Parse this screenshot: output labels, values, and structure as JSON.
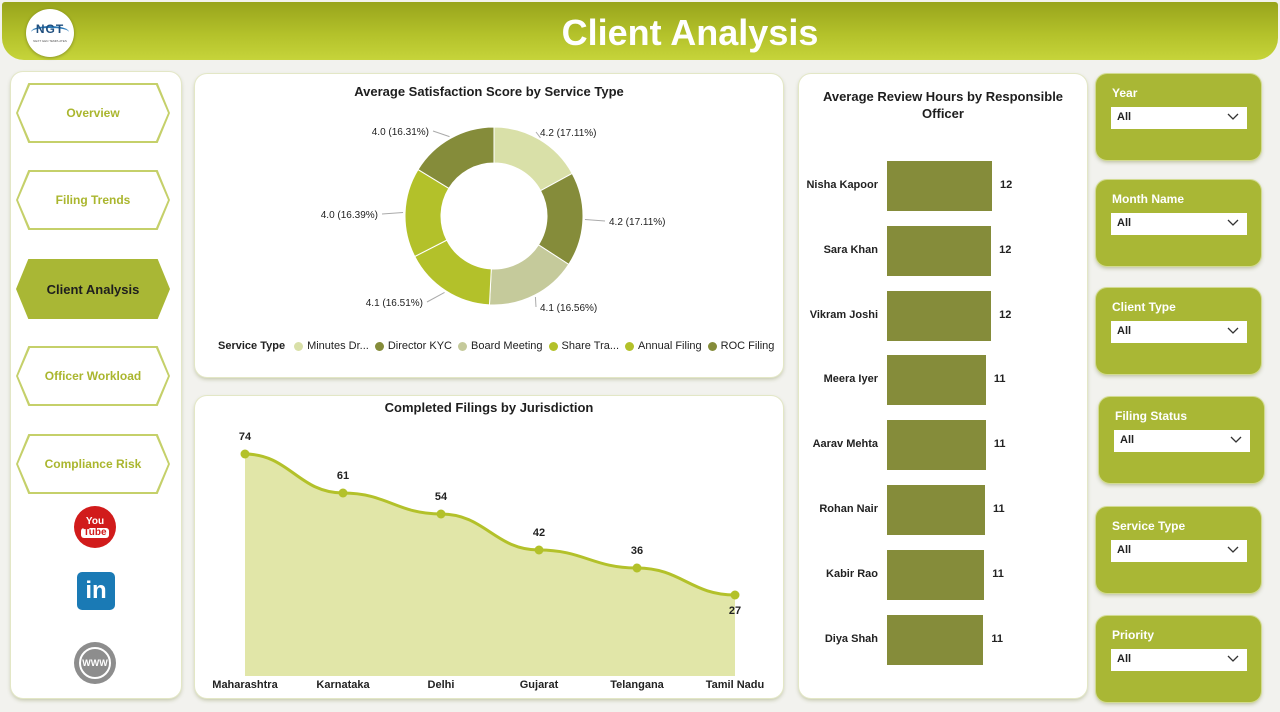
{
  "header": {
    "title": "Client Analysis",
    "logo_text": "NGT",
    "logo_tagline": "NEXT GEN TEMPLATES"
  },
  "nav": {
    "items": [
      {
        "label": "Overview",
        "active": false
      },
      {
        "label": "Filing Trends",
        "active": false
      },
      {
        "label": "Client Analysis",
        "active": true
      },
      {
        "label": "Officer Workload",
        "active": false
      },
      {
        "label": "Compliance Risk",
        "active": false
      }
    ],
    "social": {
      "youtube_top": "You",
      "youtube_bottom": "Tube",
      "linkedin": "in",
      "website": "WWW"
    }
  },
  "charts": {
    "donut": {
      "title": "Average Satisfaction Score by Service Type",
      "legend_title": "Service Type",
      "slice_labels": [
        "4.2 (17.11%)",
        "4.2 (17.11%)",
        "4.1 (16.56%)",
        "4.1 (16.51%)",
        "4.0 (16.39%)",
        "4.0 (16.31%)"
      ]
    },
    "line": {
      "title": "Completed Filings by Jurisdiction"
    },
    "bars": {
      "title": "Average Review Hours by Responsible Officer"
    }
  },
  "chart_data": [
    {
      "type": "pie",
      "title": "Average Satisfaction Score by Service Type",
      "legend_title": "Service Type",
      "categories": [
        "Minutes Dr...",
        "Director KYC",
        "Board Meeting",
        "Share Tra...",
        "Annual Filing",
        "ROC Filing"
      ],
      "values": [
        4.2,
        4.2,
        4.1,
        4.1,
        4.0,
        4.0
      ],
      "percents": [
        17.11,
        17.11,
        16.56,
        16.51,
        16.39,
        16.31
      ],
      "colors": [
        "#d9e0a8",
        "#858c3a",
        "#c5ca9b",
        "#b3c12a",
        "#b3c12a",
        "#858c3a"
      ],
      "legend_position": "bottom"
    },
    {
      "type": "area",
      "title": "Completed Filings by Jurisdiction",
      "categories": [
        "Maharashtra",
        "Karnataka",
        "Delhi",
        "Gujarat",
        "Telangana",
        "Tamil Nadu"
      ],
      "values": [
        74,
        61,
        54,
        42,
        36,
        27
      ],
      "line_color": "#b3c12a",
      "fill_color": "#e1e6a8",
      "ylim": [
        0,
        80
      ]
    },
    {
      "type": "bar",
      "orientation": "horizontal",
      "title": "Average Review Hours by Responsible Officer",
      "categories": [
        "Nisha Kapoor",
        "Sara Khan",
        "Vikram Joshi",
        "Meera Iyer",
        "Aarav Mehta",
        "Rohan Nair",
        "Kabir Rao",
        "Diya Shah"
      ],
      "values": [
        12,
        12,
        12,
        11,
        11,
        11,
        11,
        11
      ],
      "raw_values": [
        12.1,
        12.0,
        12.0,
        11.4,
        11.4,
        11.3,
        11.2,
        11.1
      ],
      "bar_color": "#858c3a",
      "xlim": [
        0,
        12.1
      ]
    }
  ],
  "filters": [
    {
      "label": "Year",
      "value": "All"
    },
    {
      "label": "Month Name",
      "value": "All"
    },
    {
      "label": "Client Type",
      "value": "All"
    },
    {
      "label": "Filing Status",
      "value": "All"
    },
    {
      "label": "Service Type",
      "value": "All"
    },
    {
      "label": "Priority",
      "value": "All"
    }
  ]
}
